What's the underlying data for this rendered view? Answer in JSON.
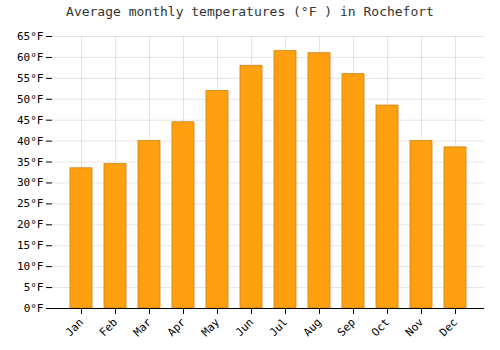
{
  "chart_data": {
    "type": "bar",
    "title": "Average monthly temperatures (°F ) in Rochefort",
    "categories": [
      "Jan",
      "Feb",
      "Mar",
      "Apr",
      "May",
      "Jun",
      "Jul",
      "Aug",
      "Sep",
      "Oct",
      "Nov",
      "Dec"
    ],
    "values": [
      33.5,
      34.5,
      40.0,
      44.5,
      52.0,
      58.0,
      61.5,
      61.0,
      56.0,
      48.5,
      40.0,
      38.5
    ],
    "color": "#FFA010",
    "ylim": [
      0,
      65
    ],
    "yticks": [
      {
        "value": 0,
        "label": "0°F"
      },
      {
        "value": 5,
        "label": "5°F"
      },
      {
        "value": 10,
        "label": "10°F"
      },
      {
        "value": 15,
        "label": "15°F"
      },
      {
        "value": 20,
        "label": "20°F"
      },
      {
        "value": 25,
        "label": "25°F"
      },
      {
        "value": 30,
        "label": "30°F"
      },
      {
        "value": 35,
        "label": "35°F"
      },
      {
        "value": 40,
        "label": "40°F"
      },
      {
        "value": 45,
        "label": "45°F"
      },
      {
        "value": 50,
        "label": "50°F"
      },
      {
        "value": 55,
        "label": "55°F"
      },
      {
        "value": 60,
        "label": "60°F"
      },
      {
        "value": 65,
        "label": "65°F"
      }
    ],
    "grid": true
  }
}
